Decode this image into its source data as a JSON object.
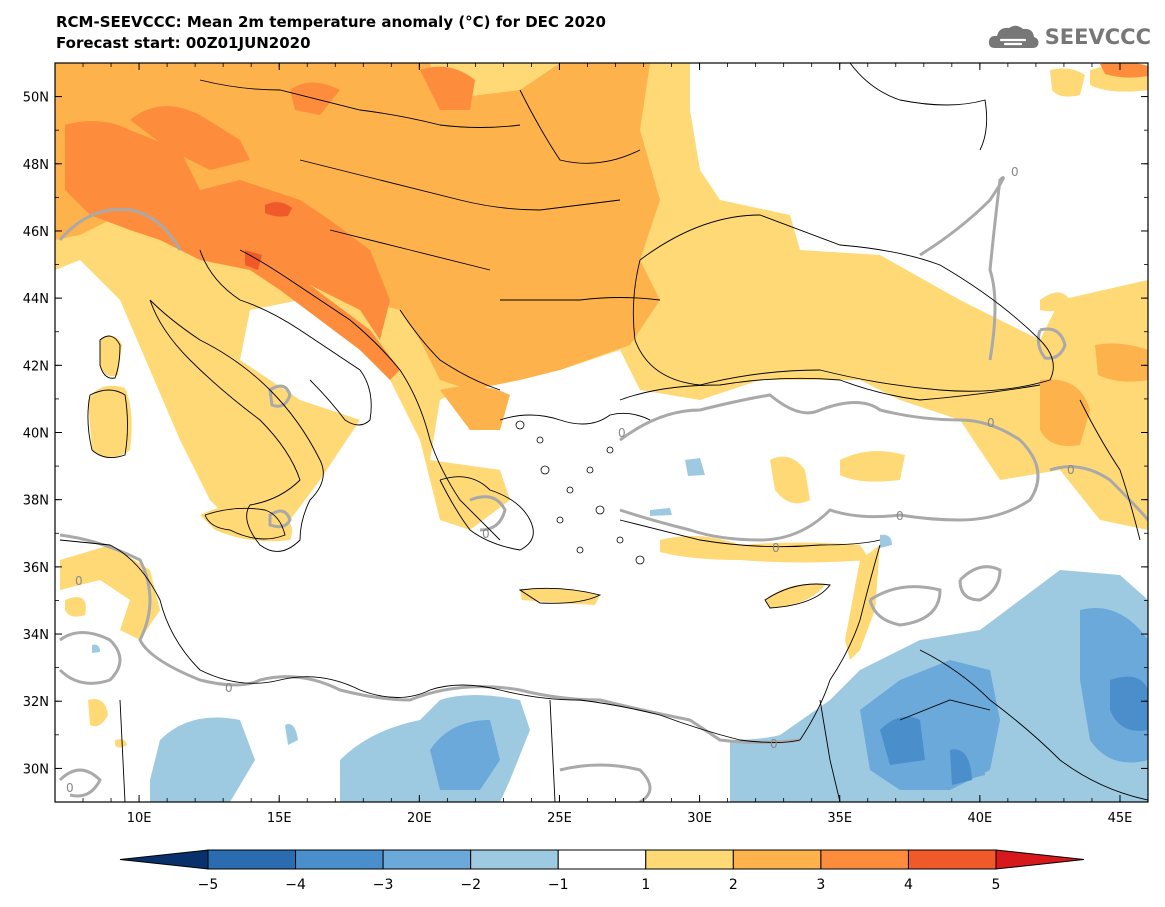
{
  "title": {
    "line1": "RCM-SEEVCCC: Mean 2m temperature anomaly (°C) for DEC 2020",
    "line2": "Forecast start: 00Z01JUN2020"
  },
  "logo": {
    "text": "SEEVCCC",
    "icon": "cloud-logo-icon"
  },
  "map": {
    "lon_range": [
      7,
      46
    ],
    "lat_range": [
      29,
      51
    ],
    "lat_ticks": [
      "50N",
      "48N",
      "46N",
      "44N",
      "42N",
      "40N",
      "38N",
      "36N",
      "34N",
      "32N",
      "30N"
    ],
    "lat_values": [
      50,
      48,
      46,
      44,
      42,
      40,
      38,
      36,
      34,
      32,
      30
    ],
    "lon_ticks": [
      "10E",
      "15E",
      "20E",
      "25E",
      "30E",
      "35E",
      "40E",
      "45E"
    ],
    "lon_values": [
      10,
      15,
      20,
      25,
      30,
      35,
      40,
      45
    ],
    "contour_label": "0"
  },
  "colorbar": {
    "labels": [
      "−5",
      "−4",
      "−3",
      "−2",
      "−1",
      "1",
      "2",
      "3",
      "4",
      "5"
    ],
    "colors": [
      "#08306b",
      "#2b6cb0",
      "#4a8fcc",
      "#6aa9d9",
      "#9ecae1",
      "#ffffff",
      "#fed976",
      "#fdb24c",
      "#fd8d3c",
      "#f0592a",
      "#d7191c"
    ]
  }
}
